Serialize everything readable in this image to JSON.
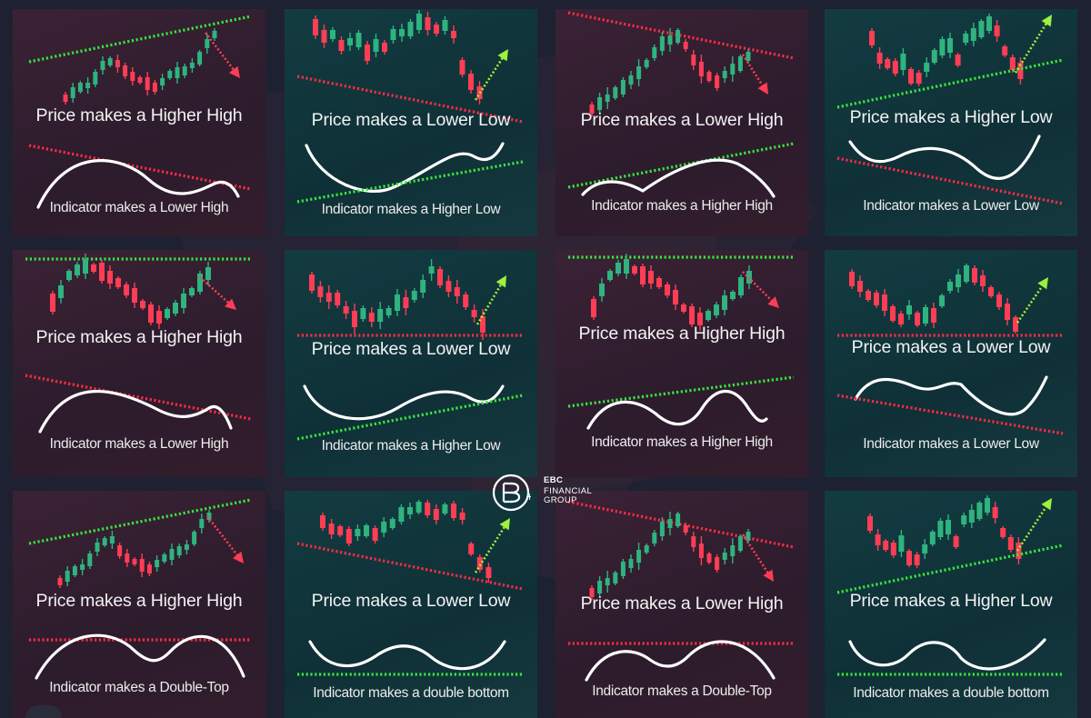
{
  "colors": {
    "bull": "#2fb37f",
    "bear": "#ff3d55",
    "green_dots": "#39e53d",
    "red_dots": "#ff2b45",
    "curve": "#ffffff",
    "bear_panel": "#2e1c2d",
    "bull_panel": "#10343a"
  },
  "logo": {
    "brand": "EBC",
    "line1": "FINANCIAL",
    "line2": "GROUP"
  },
  "panels": [
    {
      "id": "r1c1",
      "theme": "bear",
      "price": "Price makes a Higher High",
      "indicator": "Indicator makes a Lower High"
    },
    {
      "id": "r1c2",
      "theme": "bull",
      "price": "Price makes a Lower Low",
      "indicator": "Indicator makes a Higher Low"
    },
    {
      "id": "r1c3",
      "theme": "bear",
      "price": "Price makes a Lower High",
      "indicator": "Indicator makes a Higher High"
    },
    {
      "id": "r1c4",
      "theme": "bull",
      "price": "Price makes a Higher Low",
      "indicator": "Indicator makes a Lower Low"
    },
    {
      "id": "r2c1",
      "theme": "bear",
      "price": "Price makes a Higher High",
      "indicator": "Indicator makes a Lower High"
    },
    {
      "id": "r2c2",
      "theme": "bull",
      "price": "Price makes a Lower Low",
      "indicator": "Indicator makes a Higher Low"
    },
    {
      "id": "r2c3",
      "theme": "bear",
      "price": "Price makes a Higher High",
      "indicator": "Indicator makes a Higher High"
    },
    {
      "id": "r2c4",
      "theme": "bull",
      "price": "Price makes a Lower Low",
      "indicator": "Indicator makes a Lower Low"
    },
    {
      "id": "r3c1",
      "theme": "bear",
      "price": "Price makes a Higher High",
      "indicator": "Indicator makes a Double-Top"
    },
    {
      "id": "r3c2",
      "theme": "bull",
      "price": "Price makes a Lower Low",
      "indicator": "Indicator makes a double bottom"
    },
    {
      "id": "r3c3",
      "theme": "bear",
      "price": "Price makes a Lower High",
      "indicator": "Indicator makes a Double-Top"
    },
    {
      "id": "r3c4",
      "theme": "bull",
      "price": "Price makes a Higher Low",
      "indicator": "Indicator makes a double bottom"
    }
  ]
}
